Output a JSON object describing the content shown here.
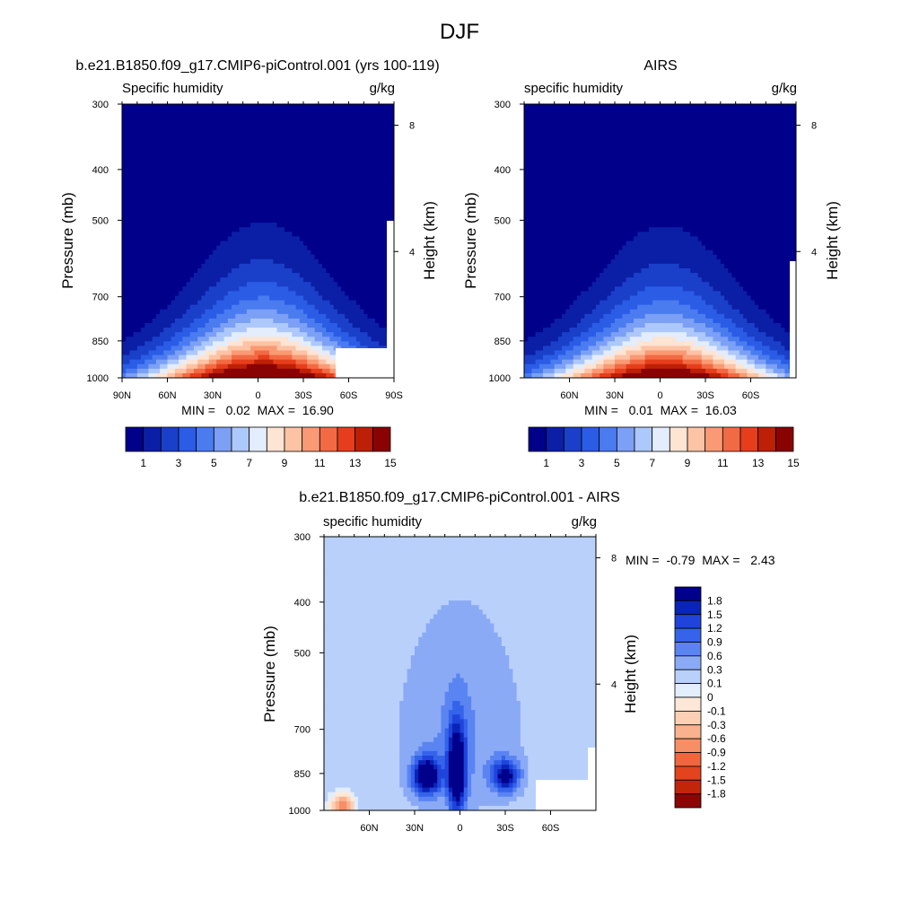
{
  "figure": {
    "title": "DJF"
  },
  "palettes": {
    "abs_colors": [
      "#00008b",
      "#0b1fa6",
      "#1a40c9",
      "#2b5ce6",
      "#4a7cf0",
      "#7ca0f5",
      "#adc8fa",
      "#e3edfc",
      "#fde4d3",
      "#fcc3a4",
      "#f99a74",
      "#f26a43",
      "#e63e1c",
      "#bd2006",
      "#8a0303"
    ],
    "abs_bar_labels": [
      "1",
      "3",
      "5",
      "7",
      "9",
      "11",
      "13",
      "15"
    ],
    "diff_colors": [
      "#00008b",
      "#0a24b8",
      "#1f44dc",
      "#3563ea",
      "#5a84f2",
      "#8aaaf6",
      "#b9d0fa",
      "#e2eefc",
      "#fde8d8",
      "#fbd0b4",
      "#f9b28e",
      "#f68f66",
      "#f0673f",
      "#e3431d",
      "#c2260a",
      "#8c0505"
    ],
    "diff_bar_labels": [
      "1.8",
      "1.5",
      "1.2",
      "0.9",
      "0.6",
      "0.3",
      "0.1",
      "0",
      "-0.1",
      "-0.3",
      "-0.6",
      "-0.9",
      "-1.2",
      "-1.5",
      "-1.8"
    ]
  },
  "panels": [
    {
      "title": "b.e21.B1850.f09_g17.CMIP6-piControl.001 (yrs 100-119)",
      "left_label": "Specific humidity",
      "right_label": "g/kg",
      "ylabel": "Pressure (mb)",
      "y2label": "Height (km)",
      "min_max": "MIN =   0.02  MAX =  16.90"
    },
    {
      "title": "AIRS",
      "left_label": "specific humidity",
      "right_label": "g/kg",
      "ylabel": "Pressure (mb)",
      "y2label": "Height (km)",
      "min_max": "MIN =   0.01  MAX =  16.03"
    },
    {
      "title": "b.e21.B1850.f09_g17.CMIP6-piControl.001 - AIRS",
      "left_label": "specific humidity",
      "right_label": "g/kg",
      "ylabel": "Pressure (mb)",
      "y2label": "Height (km)",
      "min_max": "MIN =  -0.79  MAX =   2.43"
    }
  ],
  "chart_data": [
    {
      "type": "heatmap",
      "title": "b.e21.B1850.f09_g17.CMIP6-piControl.001 (yrs 100-119)",
      "variable": "Specific humidity",
      "units": "g/kg",
      "xlabel": "",
      "ylabel": "Pressure (mb)",
      "y2label": "Height (km)",
      "x_ticks": [
        "90N",
        "60N",
        "30N",
        "0",
        "30S",
        "60S",
        "90S"
      ],
      "x_tick_values": [
        90,
        60,
        30,
        0,
        -30,
        -60,
        -90
      ],
      "xlim": [
        90,
        -90
      ],
      "y_ticks": [
        300,
        400,
        500,
        700,
        850,
        1000
      ],
      "ylim": [
        1000,
        300
      ],
      "y_scale": "log",
      "y2_ticks": [
        4,
        8
      ],
      "levels": [
        1,
        2,
        3,
        4,
        5,
        6,
        7,
        8,
        9,
        10,
        11,
        12,
        13,
        14,
        15
      ],
      "colorbar_labels": [
        "1",
        "3",
        "5",
        "7",
        "9",
        "11",
        "13",
        "15"
      ],
      "min": 0.02,
      "max": 16.9
    },
    {
      "type": "heatmap",
      "title": "AIRS",
      "variable": "specific humidity",
      "units": "g/kg",
      "xlabel": "",
      "ylabel": "Pressure (mb)",
      "y2label": "Height (km)",
      "x_ticks": [
        "60N",
        "30N",
        "0",
        "30S",
        "60S"
      ],
      "x_tick_values": [
        60,
        30,
        0,
        -30,
        -60
      ],
      "xlim": [
        90,
        -90
      ],
      "y_ticks": [
        300,
        400,
        500,
        700,
        850,
        1000
      ],
      "ylim": [
        1000,
        300
      ],
      "y_scale": "log",
      "y2_ticks": [
        4,
        8
      ],
      "levels": [
        1,
        2,
        3,
        4,
        5,
        6,
        7,
        8,
        9,
        10,
        11,
        12,
        13,
        14,
        15
      ],
      "colorbar_labels": [
        "1",
        "3",
        "5",
        "7",
        "9",
        "11",
        "13",
        "15"
      ],
      "min": 0.01,
      "max": 16.03
    },
    {
      "type": "heatmap",
      "title": "b.e21.B1850.f09_g17.CMIP6-piControl.001 - AIRS",
      "variable": "specific humidity",
      "units": "g/kg",
      "xlabel": "",
      "ylabel": "Pressure (mb)",
      "y2label": "Height (km)",
      "x_ticks": [
        "60N",
        "30N",
        "0",
        "30S",
        "60S"
      ],
      "x_tick_values": [
        60,
        30,
        0,
        -30,
        -60
      ],
      "xlim": [
        90,
        -90
      ],
      "y_ticks": [
        300,
        400,
        500,
        700,
        850,
        1000
      ],
      "ylim": [
        1000,
        300
      ],
      "y_scale": "log",
      "y2_ticks": [
        4,
        8
      ],
      "levels": [
        -1.8,
        -1.5,
        -1.2,
        -0.9,
        -0.6,
        -0.3,
        -0.1,
        0,
        0.1,
        0.3,
        0.6,
        0.9,
        1.2,
        1.5,
        1.8
      ],
      "colorbar_labels": [
        "1.8",
        "1.5",
        "1.2",
        "0.9",
        "0.6",
        "0.3",
        "0.1",
        "0",
        "-0.1",
        "-0.3",
        "-0.6",
        "-0.9",
        "-1.2",
        "-1.5",
        "-1.8"
      ],
      "min": -0.79,
      "max": 2.43
    }
  ]
}
